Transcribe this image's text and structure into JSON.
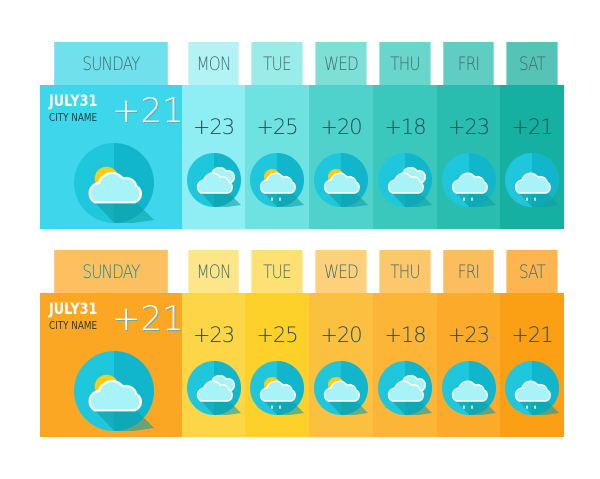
{
  "widgets": [
    {
      "theme": "blue",
      "today": {
        "day": "SUNDAY",
        "date": "JULY31",
        "city": "CITY NAME",
        "temp": "+21",
        "icon": "sun-cloud-icon",
        "header_color": "#6fe0ec",
        "body_color": "#3dd6ea"
      },
      "days": [
        {
          "day": "MON",
          "temp": "+23",
          "icon": "clouds-icon",
          "header_color": "#b3f3f6",
          "body_color": "#8eeef3"
        },
        {
          "day": "TUE",
          "temp": "+25",
          "icon": "sun-cloud-rain-icon",
          "header_color": "#9aece9",
          "body_color": "#6de2e0"
        },
        {
          "day": "WED",
          "temp": "+20",
          "icon": "sun-cloud-icon",
          "header_color": "#7ddfd6",
          "body_color": "#4fd2cb"
        },
        {
          "day": "THU",
          "temp": "+18",
          "icon": "clouds-icon",
          "header_color": "#6ad5cb",
          "body_color": "#3ac8bc"
        },
        {
          "day": "FRI",
          "temp": "+23",
          "icon": "cloud-rain-icon",
          "header_color": "#60ccc2",
          "body_color": "#29bdb0"
        },
        {
          "day": "SAT",
          "temp": "+21",
          "icon": "cloud-rain-icon",
          "header_color": "#55c3b6",
          "body_color": "#16b0a2"
        }
      ]
    },
    {
      "theme": "orange",
      "today": {
        "day": "SUNDAY",
        "date": "JULY31",
        "city": "CITY NAME",
        "temp": "+21",
        "icon": "sun-cloud-icon",
        "header_color": "#fdc060",
        "body_color": "#fba723"
      },
      "days": [
        {
          "day": "MON",
          "temp": "+23",
          "icon": "clouds-icon",
          "header_color": "#fde58a",
          "body_color": "#fcd646"
        },
        {
          "day": "TUE",
          "temp": "+25",
          "icon": "sun-cloud-rain-icon",
          "header_color": "#fee174",
          "body_color": "#fdd02a"
        },
        {
          "day": "WED",
          "temp": "+20",
          "icon": "sun-cloud-icon",
          "header_color": "#fdd07c",
          "body_color": "#fcc041"
        },
        {
          "day": "THU",
          "temp": "+18",
          "icon": "clouds-icon",
          "header_color": "#fdc76c",
          "body_color": "#fcb537"
        },
        {
          "day": "FRI",
          "temp": "+23",
          "icon": "cloud-rain-icon",
          "header_color": "#fcbd5e",
          "body_color": "#fbaa2a"
        },
        {
          "day": "SAT",
          "temp": "+21",
          "icon": "cloud-rain-icon",
          "header_color": "#fcb550",
          "body_color": "#fb9f14"
        }
      ]
    }
  ]
}
